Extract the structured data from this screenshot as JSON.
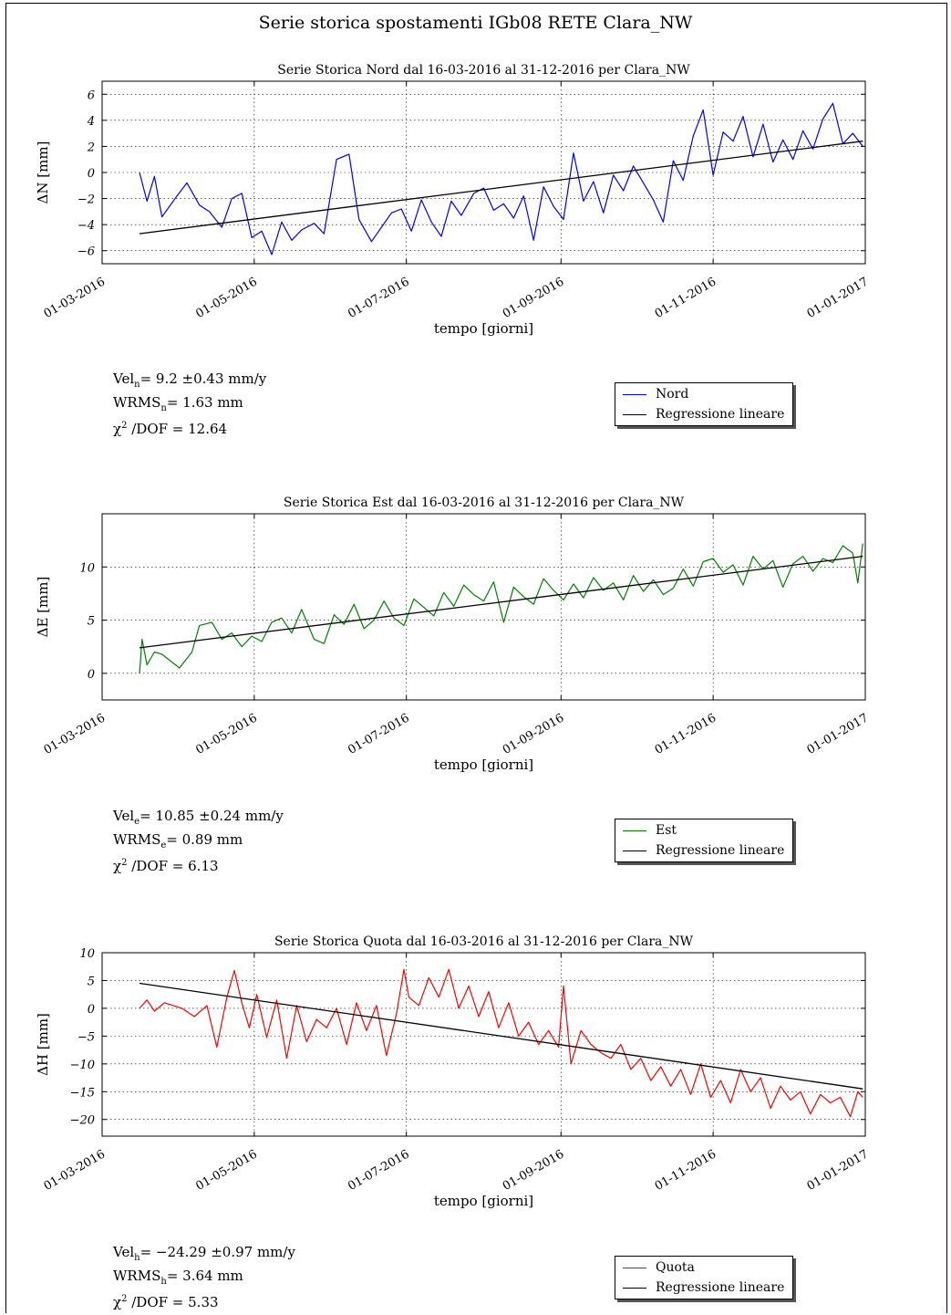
{
  "title": "Serie storica spostamenti IGb08 RETE Clara_NW",
  "chart_data": [
    {
      "type": "line",
      "title": "Serie Storica Nord dal 16-03-2016 al 31-12-2016 per Clara_NW",
      "xlabel": "tempo [giorni]",
      "ylabel": "ΔN  [mm]",
      "x_range": [
        "2016-03-01",
        "2017-01-01"
      ],
      "x_ticks": [
        "01-03-2016",
        "01-05-2016",
        "01-07-2016",
        "01-09-2016",
        "01-11-2016",
        "01-01-2017"
      ],
      "ylim": [
        -7,
        7
      ],
      "y_ticks": [
        "6",
        "4",
        "2",
        "0",
        "−2",
        "−4",
        "−6"
      ],
      "y_tick_values": [
        6,
        4,
        2,
        0,
        -2,
        -4,
        -6
      ],
      "grid": true,
      "legend_position": "below-right",
      "series": [
        {
          "name": "Nord",
          "color": "#0000ff",
          "x": [
            "2016-03-16",
            "2016-03-19",
            "2016-03-22",
            "2016-03-25",
            "2016-03-31",
            "2016-04-04",
            "2016-04-09",
            "2016-04-13",
            "2016-04-18",
            "2016-04-22",
            "2016-04-26",
            "2016-04-30",
            "2016-05-04",
            "2016-05-08",
            "2016-05-12",
            "2016-05-16",
            "2016-05-20",
            "2016-05-25",
            "2016-05-29",
            "2016-06-03",
            "2016-06-08",
            "2016-06-12",
            "2016-06-17",
            "2016-06-21",
            "2016-06-25",
            "2016-06-29",
            "2016-07-03",
            "2016-07-07",
            "2016-07-11",
            "2016-07-15",
            "2016-07-19",
            "2016-07-23",
            "2016-07-28",
            "2016-08-01",
            "2016-08-05",
            "2016-08-09",
            "2016-08-13",
            "2016-08-17",
            "2016-08-21",
            "2016-08-25",
            "2016-08-29",
            "2016-09-02",
            "2016-09-06",
            "2016-09-10",
            "2016-09-14",
            "2016-09-18",
            "2016-09-22",
            "2016-09-26",
            "2016-09-30",
            "2016-10-04",
            "2016-10-08",
            "2016-10-12",
            "2016-10-16",
            "2016-10-20",
            "2016-10-24",
            "2016-10-28",
            "2016-11-01",
            "2016-11-05",
            "2016-11-09",
            "2016-11-13",
            "2016-11-17",
            "2016-11-21",
            "2016-11-25",
            "2016-11-29",
            "2016-12-03",
            "2016-12-07",
            "2016-12-11",
            "2016-12-15",
            "2016-12-19",
            "2016-12-23",
            "2016-12-27",
            "2016-12-31"
          ],
          "y": [
            0.0,
            -2.2,
            -0.3,
            -3.4,
            -1.8,
            -0.8,
            -2.5,
            -3.0,
            -4.2,
            -2.0,
            -1.6,
            -5.0,
            -4.5,
            -6.3,
            -3.8,
            -5.2,
            -4.4,
            -3.9,
            -4.7,
            1.0,
            1.4,
            -3.6,
            -5.3,
            -4.2,
            -3.1,
            -2.8,
            -4.5,
            -2.1,
            -3.8,
            -4.9,
            -2.2,
            -3.3,
            -1.6,
            -1.2,
            -2.9,
            -2.4,
            -3.5,
            -1.8,
            -5.2,
            -1.1,
            -2.6,
            -3.6,
            1.5,
            -2.2,
            -0.7,
            -3.1,
            -0.2,
            -1.4,
            0.5,
            -0.8,
            -2.1,
            -3.8,
            0.9,
            -0.6,
            2.8,
            4.8,
            -0.2,
            3.1,
            2.4,
            4.3,
            1.2,
            3.7,
            0.8,
            2.5,
            1.0,
            3.2,
            1.8,
            4.1,
            5.3,
            2.2,
            3.0,
            2.0
          ]
        },
        {
          "name": "Regressione lineare",
          "color": "#000000",
          "x": [
            "2016-03-16",
            "2016-12-31"
          ],
          "y": [
            -4.7,
            2.4
          ]
        }
      ],
      "stats": [
        "Vel",
        "n",
        "=  9.2 ±0.43  mm/y",
        "WRMS",
        "n",
        "=  1.63  mm",
        "χ",
        "2",
        " /DOF  =  12.64"
      ]
    },
    {
      "type": "line",
      "title": "Serie Storica Est dal 16-03-2016 al 31-12-2016 per Clara_NW",
      "xlabel": "tempo [giorni]",
      "ylabel": "ΔE  [mm]",
      "x_range": [
        "2016-03-01",
        "2017-01-01"
      ],
      "x_ticks": [
        "01-03-2016",
        "01-05-2016",
        "01-07-2016",
        "01-09-2016",
        "01-11-2016",
        "01-01-2017"
      ],
      "ylim": [
        -2.5,
        15
      ],
      "y_ticks": [
        "10",
        "5",
        "0"
      ],
      "y_tick_values": [
        10,
        5,
        0
      ],
      "grid": true,
      "legend_position": "below-right",
      "series": [
        {
          "name": "Est",
          "color": "#008000",
          "x": [
            "2016-03-16",
            "2016-03-17",
            "2016-03-19",
            "2016-03-22",
            "2016-03-25",
            "2016-04-01",
            "2016-04-06",
            "2016-04-09",
            "2016-04-14",
            "2016-04-18",
            "2016-04-22",
            "2016-04-26",
            "2016-04-30",
            "2016-05-04",
            "2016-05-08",
            "2016-05-12",
            "2016-05-16",
            "2016-05-20",
            "2016-05-25",
            "2016-05-29",
            "2016-06-02",
            "2016-06-06",
            "2016-06-10",
            "2016-06-14",
            "2016-06-18",
            "2016-06-22",
            "2016-06-26",
            "2016-06-30",
            "2016-07-04",
            "2016-07-08",
            "2016-07-12",
            "2016-07-16",
            "2016-07-20",
            "2016-07-24",
            "2016-07-28",
            "2016-08-01",
            "2016-08-05",
            "2016-08-09",
            "2016-08-13",
            "2016-08-17",
            "2016-08-21",
            "2016-08-25",
            "2016-08-29",
            "2016-09-02",
            "2016-09-06",
            "2016-09-10",
            "2016-09-14",
            "2016-09-18",
            "2016-09-22",
            "2016-09-26",
            "2016-09-30",
            "2016-10-04",
            "2016-10-08",
            "2016-10-12",
            "2016-10-16",
            "2016-10-20",
            "2016-10-24",
            "2016-10-28",
            "2016-11-01",
            "2016-11-05",
            "2016-11-09",
            "2016-11-13",
            "2016-11-17",
            "2016-11-21",
            "2016-11-25",
            "2016-11-29",
            "2016-12-03",
            "2016-12-07",
            "2016-12-11",
            "2016-12-15",
            "2016-12-19",
            "2016-12-23",
            "2016-12-27",
            "2016-12-29",
            "2016-12-31"
          ],
          "y": [
            0.0,
            3.2,
            0.8,
            2.0,
            1.8,
            0.5,
            2.0,
            4.5,
            4.8,
            3.2,
            3.8,
            2.5,
            3.5,
            3.0,
            4.8,
            5.2,
            3.8,
            6.0,
            3.2,
            2.8,
            5.5,
            4.6,
            6.5,
            4.2,
            5.0,
            6.8,
            5.2,
            4.5,
            7.0,
            6.2,
            5.4,
            7.6,
            6.3,
            8.3,
            7.4,
            6.8,
            8.6,
            4.8,
            8.1,
            7.2,
            6.5,
            8.9,
            7.8,
            6.9,
            8.4,
            7.1,
            9.0,
            7.8,
            8.5,
            6.9,
            9.2,
            7.7,
            8.8,
            7.4,
            8.0,
            9.8,
            8.2,
            10.5,
            10.8,
            9.5,
            10.2,
            8.3,
            11.0,
            9.8,
            10.6,
            8.1,
            10.3,
            11.0,
            9.6,
            10.8,
            10.4,
            12.0,
            11.3,
            8.5,
            12.2
          ]
        },
        {
          "name": "Regressione lineare",
          "color": "#000000",
          "x": [
            "2016-03-16",
            "2016-12-31"
          ],
          "y": [
            2.4,
            11.0
          ]
        }
      ],
      "stats": [
        "Vel",
        "e",
        "=  10.85 ±0.24  mm/y",
        "WRMS",
        "e",
        "=  0.89  mm",
        "χ",
        "2",
        " /DOF  =  6.13"
      ]
    },
    {
      "type": "line",
      "title": "Serie Storica Quota dal 16-03-2016 al 31-12-2016 per Clara_NW",
      "xlabel": "tempo [giorni]",
      "ylabel": "ΔH  [mm]",
      "x_range": [
        "2016-03-01",
        "2017-01-01"
      ],
      "x_ticks": [
        "01-03-2016",
        "01-05-2016",
        "01-07-2016",
        "01-09-2016",
        "01-11-2016",
        "01-01-2017"
      ],
      "ylim": [
        -23,
        10
      ],
      "y_ticks": [
        "10",
        "5",
        "0",
        "−5",
        "−10",
        "−15",
        "−20"
      ],
      "y_tick_values": [
        10,
        5,
        0,
        -5,
        -10,
        -15,
        -20
      ],
      "grid": true,
      "legend_position": "below-right",
      "series": [
        {
          "name": "Quota",
          "color": "#ff0000",
          "x": [
            "2016-03-16",
            "2016-03-19",
            "2016-03-22",
            "2016-03-26",
            "2016-04-02",
            "2016-04-07",
            "2016-04-12",
            "2016-04-16",
            "2016-04-20",
            "2016-04-23",
            "2016-04-26",
            "2016-04-29",
            "2016-05-02",
            "2016-05-06",
            "2016-05-10",
            "2016-05-14",
            "2016-05-18",
            "2016-05-22",
            "2016-05-26",
            "2016-05-30",
            "2016-06-03",
            "2016-06-07",
            "2016-06-11",
            "2016-06-15",
            "2016-06-19",
            "2016-06-23",
            "2016-06-27",
            "2016-06-30",
            "2016-07-02",
            "2016-07-06",
            "2016-07-10",
            "2016-07-14",
            "2016-07-18",
            "2016-07-22",
            "2016-07-26",
            "2016-07-30",
            "2016-08-03",
            "2016-08-07",
            "2016-08-11",
            "2016-08-15",
            "2016-08-19",
            "2016-08-23",
            "2016-08-27",
            "2016-08-31",
            "2016-09-02",
            "2016-09-05",
            "2016-09-09",
            "2016-09-13",
            "2016-09-17",
            "2016-09-21",
            "2016-09-25",
            "2016-09-29",
            "2016-10-03",
            "2016-10-07",
            "2016-10-11",
            "2016-10-15",
            "2016-10-19",
            "2016-10-23",
            "2016-10-27",
            "2016-10-31",
            "2016-11-04",
            "2016-11-08",
            "2016-11-12",
            "2016-11-16",
            "2016-11-20",
            "2016-11-24",
            "2016-11-28",
            "2016-12-02",
            "2016-12-06",
            "2016-12-10",
            "2016-12-14",
            "2016-12-18",
            "2016-12-22",
            "2016-12-26",
            "2016-12-29",
            "2016-12-31"
          ],
          "y": [
            0.0,
            1.5,
            -0.5,
            1.0,
            0.0,
            -1.5,
            0.5,
            -7.0,
            2.0,
            6.8,
            1.0,
            -3.5,
            2.5,
            -5.2,
            1.5,
            -9.0,
            0.5,
            -6.0,
            -2.0,
            -3.5,
            0.0,
            -6.5,
            1.0,
            -4.0,
            0.5,
            -8.5,
            -1.0,
            7.0,
            2.0,
            0.5,
            5.5,
            2.0,
            7.0,
            0.0,
            4.0,
            -1.5,
            3.0,
            -3.5,
            1.0,
            -5.0,
            -2.5,
            -6.5,
            -4.0,
            -7.0,
            4.0,
            -10.0,
            -4.0,
            -6.5,
            -8.0,
            -9.0,
            -6.5,
            -11.0,
            -9.0,
            -13.0,
            -10.5,
            -14.0,
            -11.0,
            -15.5,
            -10.0,
            -16.0,
            -13.0,
            -17.0,
            -11.0,
            -15.0,
            -12.5,
            -18.0,
            -14.0,
            -16.5,
            -15.0,
            -19.0,
            -15.5,
            -17.0,
            -16.0,
            -19.5,
            -15.0,
            -16.0
          ]
        },
        {
          "name": "Regressione lineare",
          "color": "#000000",
          "x": [
            "2016-03-16",
            "2016-12-31"
          ],
          "y": [
            4.5,
            -14.5
          ]
        }
      ],
      "stats": [
        "Vel",
        "h",
        "=  −24.29 ±0.97  mm/y",
        "WRMS",
        "h",
        "=  3.64  mm",
        "χ",
        "2",
        " /DOF  =  5.33"
      ]
    }
  ]
}
